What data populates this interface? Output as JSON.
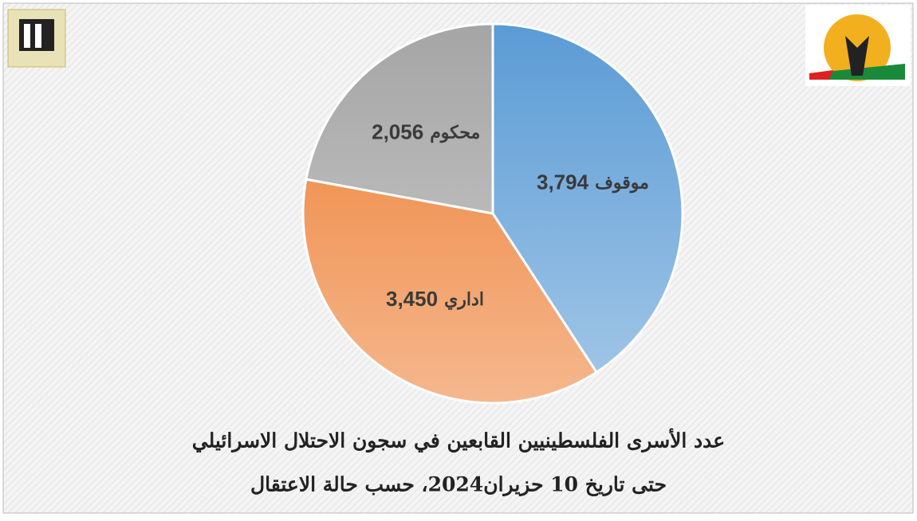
{
  "chart_data": {
    "type": "pie",
    "title": "عدد الأسرى الفلسطينيين القابعين في سجون الاحتلال الاسرائيلي",
    "subtitle": "حتى تاريخ 10 حزيران2024، حسب حالة الاعتقال",
    "categories": [
      "موقوف",
      "اداري",
      "محكوم"
    ],
    "values": [
      3794,
      3450,
      2056
    ],
    "value_labels": [
      "3,794",
      "3,450",
      "2,056"
    ],
    "colors": [
      "#5b9bd5",
      "#ed7d31",
      "#a5a5a5"
    ]
  }
}
